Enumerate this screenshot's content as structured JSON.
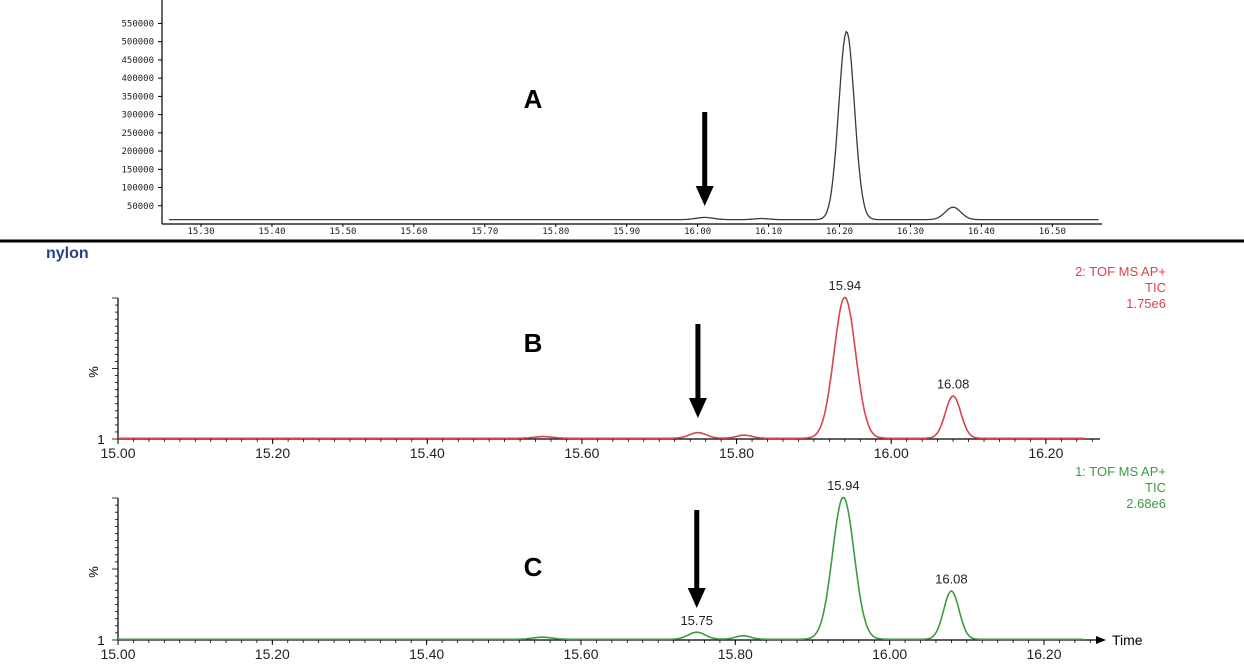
{
  "colors": {
    "panel_a": "#3a3a3a",
    "panel_b": "#d9434d",
    "panel_c": "#3f9a3f",
    "axis": "#000000",
    "nylon_label": "#2b3f8f",
    "divider": "#000000"
  },
  "divider_label": "nylon",
  "chart_data": [
    {
      "type": "line",
      "panel_letter": "A",
      "x_ticks": [
        "15.30",
        "15.40",
        "15.50",
        "15.60",
        "15.70",
        "15.80",
        "15.90",
        "16.00",
        "16.10",
        "16.20",
        "16.30",
        "16.40",
        "16.50"
      ],
      "y_ticks": [
        "50000",
        "100000",
        "150000",
        "200000",
        "250000",
        "300000",
        "350000",
        "400000",
        "450000",
        "500000",
        "550000"
      ],
      "xlim": [
        15.245,
        16.57
      ],
      "ylim": [
        0,
        565000
      ],
      "baseline": 12000,
      "peaks": [
        {
          "x": 16.01,
          "height": 6000,
          "width": 0.012
        },
        {
          "x": 16.09,
          "height": 3000,
          "width": 0.01
        },
        {
          "x": 16.21,
          "height": 516000,
          "width": 0.011
        },
        {
          "x": 16.36,
          "height": 34000,
          "width": 0.011
        }
      ],
      "arrow_x": 16.01
    },
    {
      "type": "line",
      "panel_letter": "B",
      "ylabel": "%",
      "y_min_label": "1",
      "x_ticks": [
        "15.00",
        "15.20",
        "15.40",
        "15.60",
        "15.80",
        "16.00",
        "16.20"
      ],
      "xlim": [
        15.0,
        16.27
      ],
      "ylim": [
        0,
        100
      ],
      "baseline": 0.5,
      "legend": [
        "2: TOF MS AP+",
        "TIC",
        "1.75e6"
      ],
      "peak_labels": [
        {
          "x": 15.94,
          "y": 100,
          "label": "15.94"
        },
        {
          "x": 16.08,
          "y": 30,
          "label": "16.08"
        }
      ],
      "peaks": [
        {
          "x": 15.55,
          "height": 1.2,
          "width": 0.012
        },
        {
          "x": 15.75,
          "height": 4,
          "width": 0.011
        },
        {
          "x": 15.81,
          "height": 2.2,
          "width": 0.01
        },
        {
          "x": 15.94,
          "height": 100,
          "width": 0.014
        },
        {
          "x": 16.08,
          "height": 30,
          "width": 0.01
        }
      ],
      "arrow_x": 15.75
    },
    {
      "type": "line",
      "panel_letter": "C",
      "ylabel": "%",
      "y_min_label": "1",
      "xlabel": "Time",
      "x_ticks": [
        "15.00",
        "15.20",
        "15.40",
        "15.60",
        "15.80",
        "16.00",
        "16.20"
      ],
      "xlim": [
        15.0,
        16.27
      ],
      "ylim": [
        0,
        100
      ],
      "baseline": 0.5,
      "legend": [
        "1: TOF MS AP+",
        "TIC",
        "2.68e6"
      ],
      "peak_labels": [
        {
          "x": 15.94,
          "y": 100,
          "label": "15.94"
        },
        {
          "x": 16.08,
          "y": 34,
          "label": "16.08"
        },
        {
          "x": 15.75,
          "y": 5,
          "label": "15.75"
        }
      ],
      "peaks": [
        {
          "x": 15.55,
          "height": 1.5,
          "width": 0.012
        },
        {
          "x": 15.75,
          "height": 5,
          "width": 0.011
        },
        {
          "x": 15.81,
          "height": 2.5,
          "width": 0.01
        },
        {
          "x": 15.94,
          "height": 100,
          "width": 0.014
        },
        {
          "x": 16.08,
          "height": 34,
          "width": 0.01
        }
      ],
      "arrow_x": 15.75
    }
  ]
}
